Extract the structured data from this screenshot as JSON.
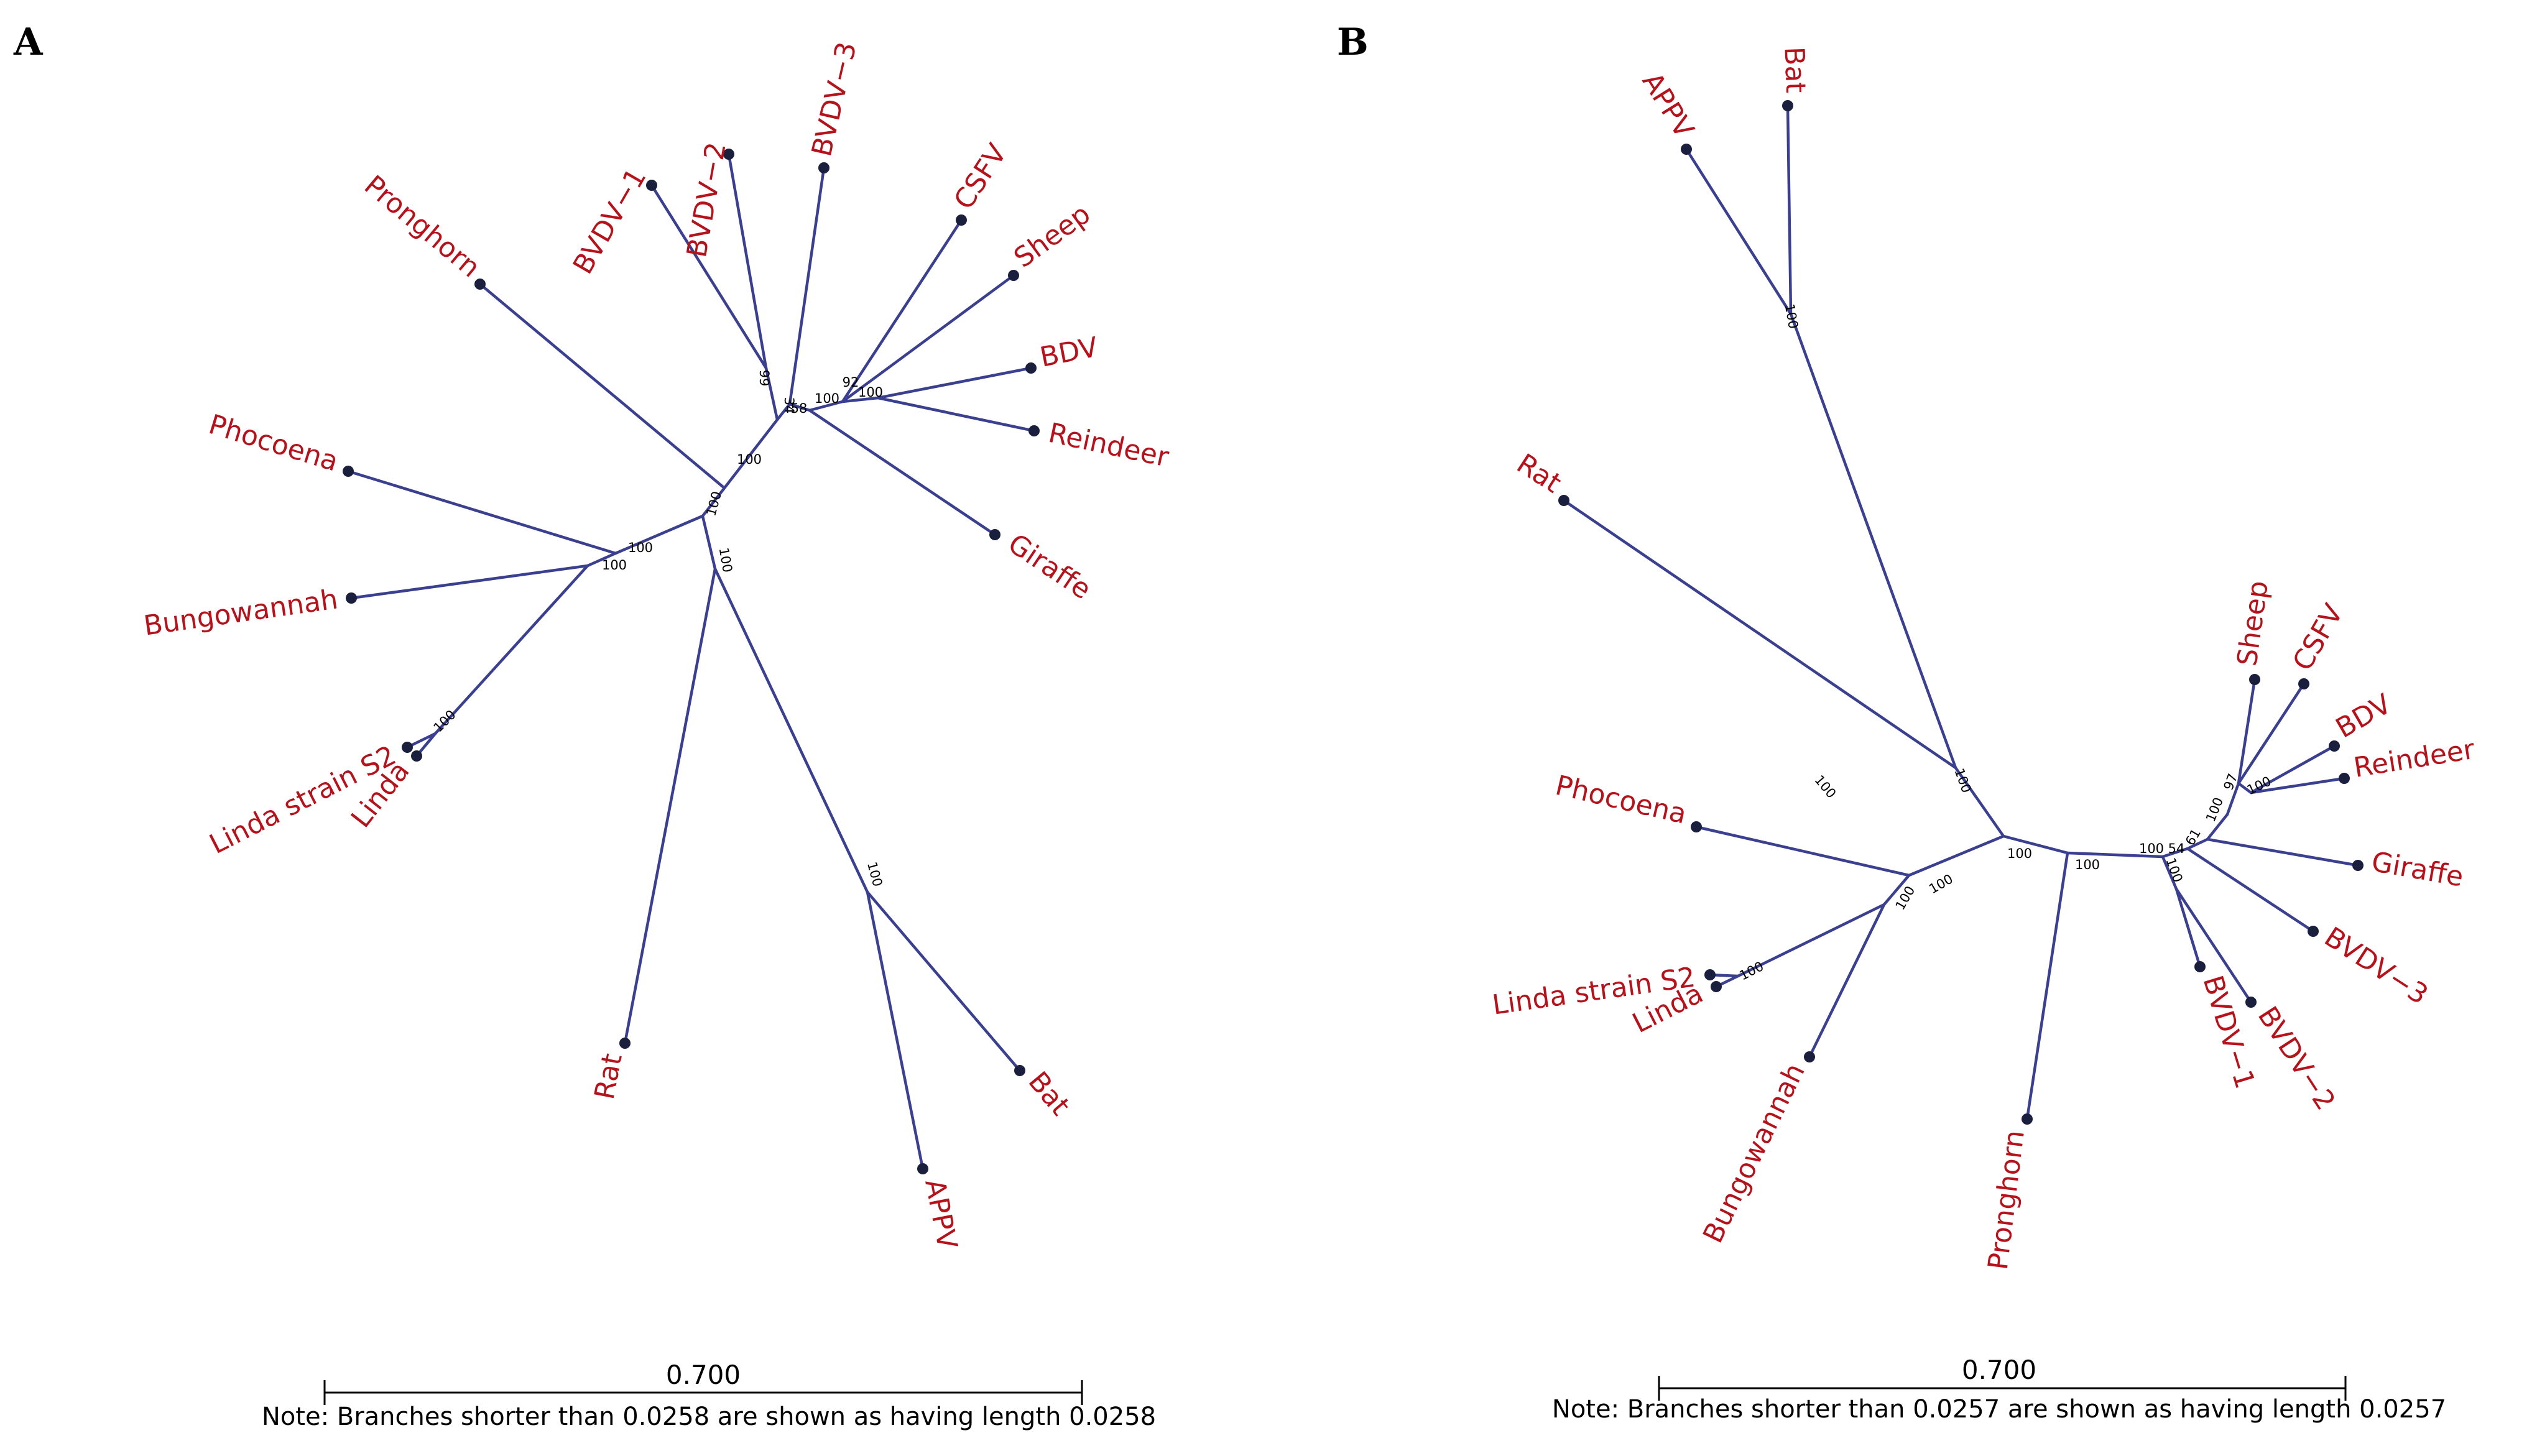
{
  "panels": [
    {
      "id": "A",
      "label": "A",
      "scale_label": "0.700",
      "note": "Note: Branches shorter than 0.0258 are shown as having length 0.0258",
      "taxa": [
        "BVDV−1",
        "BVDV−2",
        "BVDV−3",
        "CSFV",
        "Sheep",
        "BDV",
        "Reindeer",
        "Giraffe",
        "Pronghorn",
        "Phocoena",
        "Bungowannah",
        "Linda strain S2",
        "Linda",
        "Rat",
        "Bat",
        "APPV"
      ],
      "support_values": [
        "99",
        "34",
        "58",
        "100",
        "92",
        "100",
        "100",
        "100",
        "100",
        "100",
        "100",
        "100",
        "100"
      ]
    },
    {
      "id": "B",
      "label": "B",
      "scale_label": "0.700",
      "note": "Note: Branches shorter than 0.0257 are shown as having length 0.0257",
      "taxa": [
        "APPV",
        "Bat",
        "Rat",
        "Sheep",
        "CSFV",
        "BDV",
        "Reindeer",
        "Giraffe",
        "BVDV−3",
        "BVDV−2",
        "BVDV−1",
        "Pronghorn",
        "Phocoena",
        "Linda strain S2",
        "Linda",
        "Bungowannah"
      ],
      "support_values": [
        "100",
        "100",
        "100",
        "100",
        "100",
        "54",
        "61",
        "100",
        "97",
        "100",
        "100",
        "100",
        "100",
        "100",
        "100"
      ]
    }
  ]
}
